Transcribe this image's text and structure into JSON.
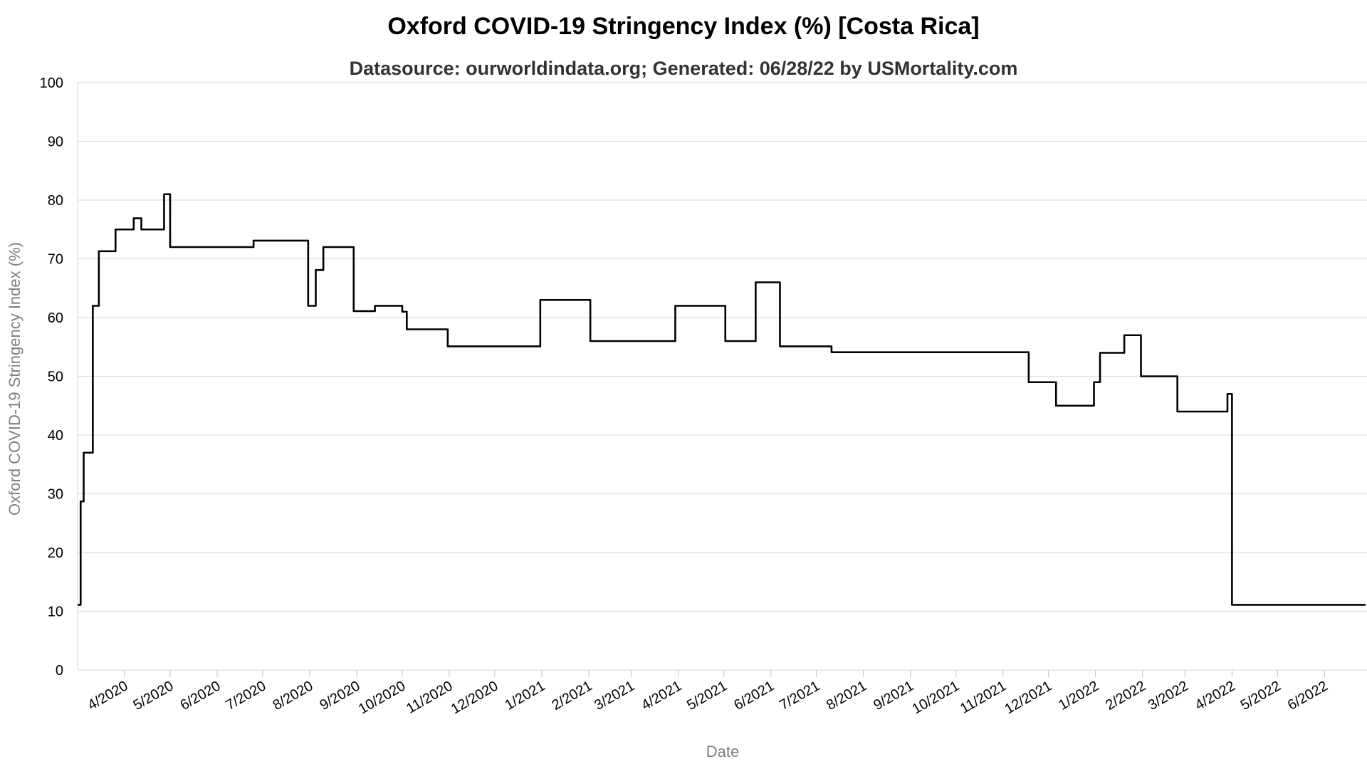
{
  "chart_data": {
    "type": "line",
    "title": "Oxford COVID-19 Stringency Index (%) [Costa Rica]",
    "subtitle": "Datasource: ourworldindata.org; Generated: 06/28/22 by USMortality.com",
    "xlabel": "Date",
    "ylabel": "Oxford COVID-19 Stringency Index (%)",
    "ylim": [
      0,
      100
    ],
    "yticks": [
      0,
      10,
      20,
      30,
      40,
      50,
      60,
      70,
      80,
      90,
      100
    ],
    "xlim": [
      "2020-03-01",
      "2022-06-28"
    ],
    "xtick_dates": [
      "2020-04-01",
      "2020-05-01",
      "2020-06-01",
      "2020-07-01",
      "2020-08-01",
      "2020-09-01",
      "2020-10-01",
      "2020-11-01",
      "2020-12-01",
      "2021-01-01",
      "2021-02-01",
      "2021-03-01",
      "2021-04-01",
      "2021-05-01",
      "2021-06-01",
      "2021-07-01",
      "2021-08-01",
      "2021-09-01",
      "2021-10-01",
      "2021-11-01",
      "2021-12-01",
      "2022-01-01",
      "2022-02-01",
      "2022-03-01",
      "2022-04-01",
      "2022-05-01",
      "2022-06-01"
    ],
    "xtick_labels": [
      "4/2020",
      "5/2020",
      "6/2020",
      "7/2020",
      "8/2020",
      "9/2020",
      "10/2020",
      "11/2020",
      "12/2020",
      "1/2021",
      "2/2021",
      "3/2021",
      "4/2021",
      "5/2021",
      "6/2021",
      "7/2021",
      "8/2021",
      "9/2021",
      "10/2021",
      "11/2021",
      "12/2021",
      "1/2022",
      "2/2022",
      "3/2022",
      "4/2022",
      "5/2022",
      "6/2022"
    ],
    "grid": true,
    "line_color": "#000000",
    "series": [
      {
        "step": true,
        "points": [
          [
            "2020-03-01",
            11.1
          ],
          [
            "2020-03-03",
            28.7
          ],
          [
            "2020-03-05",
            37.0
          ],
          [
            "2020-03-11",
            62.0
          ],
          [
            "2020-03-15",
            71.3
          ],
          [
            "2020-03-26",
            75.0
          ],
          [
            "2020-04-07",
            76.9
          ],
          [
            "2020-04-12",
            75.0
          ],
          [
            "2020-04-27",
            81.0
          ],
          [
            "2020-05-01",
            72.0
          ],
          [
            "2020-06-25",
            73.1
          ],
          [
            "2020-07-31",
            62.0
          ],
          [
            "2020-08-05",
            68.1
          ],
          [
            "2020-08-10",
            72.0
          ],
          [
            "2020-08-30",
            61.1
          ],
          [
            "2020-09-13",
            62.0
          ],
          [
            "2020-10-01",
            61.0
          ],
          [
            "2020-10-04",
            58.0
          ],
          [
            "2020-10-31",
            55.1
          ],
          [
            "2020-12-31",
            63.0
          ],
          [
            "2021-02-02",
            56.0
          ],
          [
            "2021-03-30",
            62.0
          ],
          [
            "2021-05-02",
            56.0
          ],
          [
            "2021-05-22",
            66.0
          ],
          [
            "2021-06-07",
            55.1
          ],
          [
            "2021-07-11",
            54.1
          ],
          [
            "2021-11-18",
            49.0
          ],
          [
            "2021-12-06",
            45.0
          ],
          [
            "2021-12-31",
            49.0
          ],
          [
            "2022-01-04",
            54.0
          ],
          [
            "2022-01-20",
            57.0
          ],
          [
            "2022-01-31",
            50.0
          ],
          [
            "2022-02-24",
            44.0
          ],
          [
            "2022-03-29",
            47.0
          ],
          [
            "2022-04-01",
            11.1
          ],
          [
            "2022-06-28",
            11.1
          ]
        ]
      }
    ]
  }
}
